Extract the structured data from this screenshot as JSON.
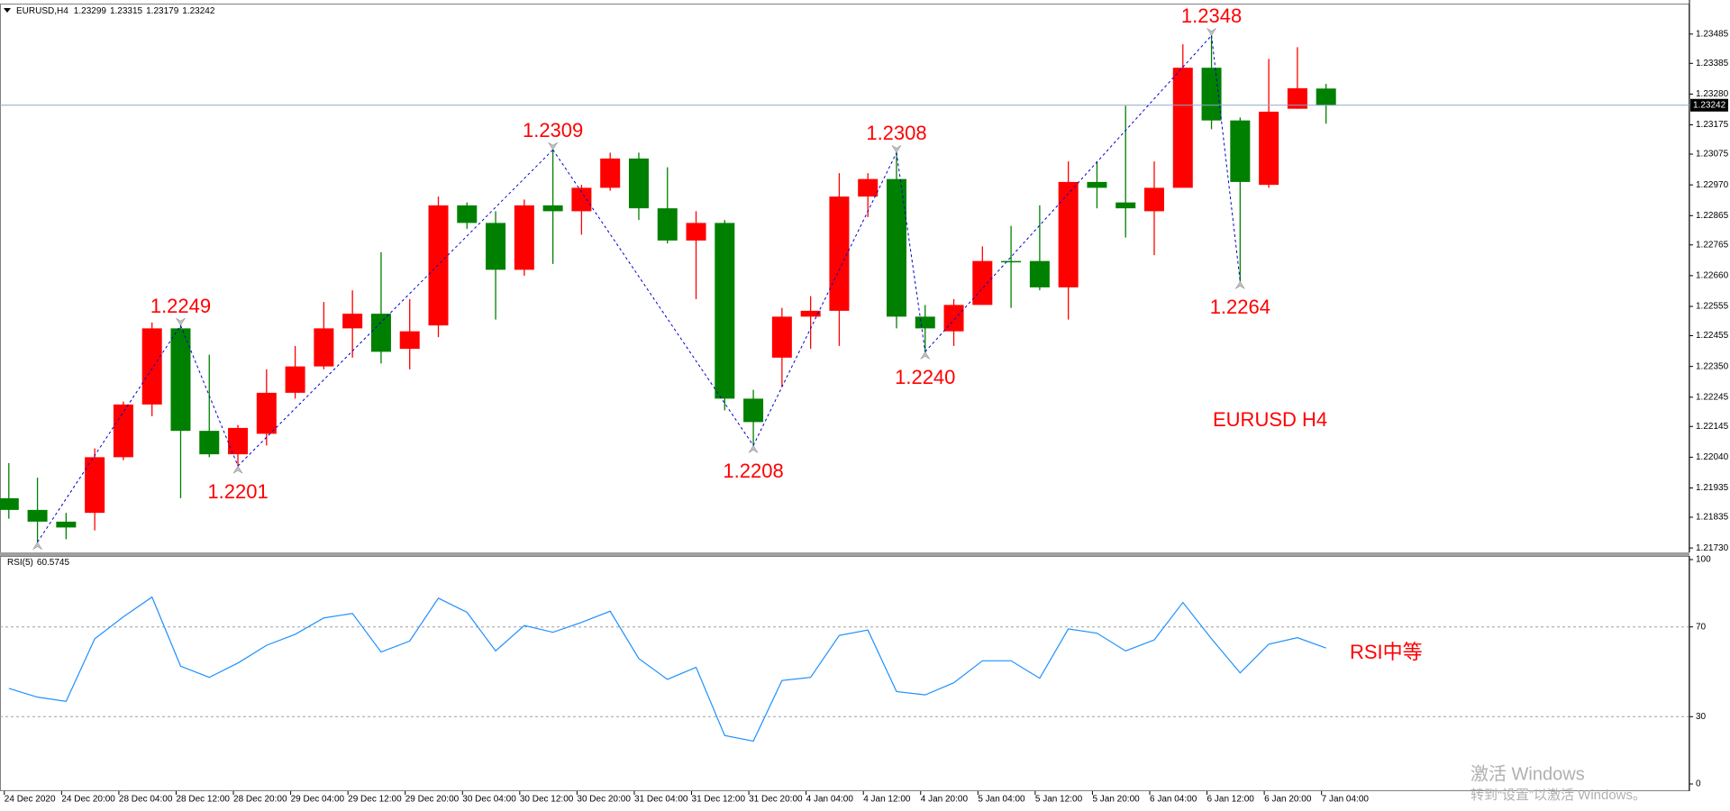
{
  "chart_data": [
    {
      "type": "candlestick",
      "title": "EURUSD,H4",
      "open": [
        1.219,
        1.2186,
        1.2182,
        1.2185,
        1.2204,
        1.2222,
        1.2248,
        1.2213,
        1.2205,
        1.2212,
        1.2226,
        1.2235,
        1.2248,
        1.2253,
        1.2241,
        1.2249,
        1.229,
        1.2284,
        1.2268,
        1.229,
        1.2288,
        1.2296,
        1.2306,
        1.2289,
        1.2278,
        1.2284,
        1.2224,
        1.2238,
        1.2252,
        1.2254,
        1.2293,
        1.2299,
        1.2252,
        1.2247,
        1.2256,
        1.2271,
        1.2271,
        1.2262,
        1.2298,
        1.2291,
        1.2288,
        1.2296,
        1.2337,
        1.2319,
        1.2297,
        1.2323,
        1.23299
      ],
      "high": [
        1.2202,
        1.2197,
        1.2185,
        1.2207,
        1.2223,
        1.225,
        1.2249,
        1.2239,
        1.2215,
        1.2234,
        1.2242,
        1.2257,
        1.2261,
        1.2274,
        1.2258,
        1.2293,
        1.2291,
        1.2288,
        1.2292,
        1.2309,
        1.2297,
        1.2308,
        1.2308,
        1.2303,
        1.2288,
        1.2285,
        1.2227,
        1.2255,
        1.2259,
        1.2301,
        1.2301,
        1.2308,
        1.2256,
        1.2258,
        1.2276,
        1.2283,
        1.229,
        1.2305,
        1.2305,
        1.2324,
        1.2305,
        1.2345,
        1.2348,
        1.232,
        1.234,
        1.2344,
        1.23315
      ],
      "low": [
        1.2183,
        1.2175,
        1.2176,
        1.2179,
        1.2203,
        1.2218,
        1.219,
        1.2204,
        1.2201,
        1.2208,
        1.2224,
        1.2234,
        1.2238,
        1.2236,
        1.2234,
        1.2245,
        1.2282,
        1.2251,
        1.2266,
        1.227,
        1.228,
        1.2295,
        1.2285,
        1.2277,
        1.2258,
        1.222,
        1.2208,
        1.2228,
        1.2241,
        1.2242,
        1.2286,
        1.2248,
        1.224,
        1.2242,
        1.2256,
        1.2255,
        1.2261,
        1.2251,
        1.2289,
        1.2279,
        1.2273,
        1.2296,
        1.2316,
        1.2264,
        1.2296,
        1.2323,
        1.23179
      ],
      "close": [
        1.2186,
        1.2182,
        1.218,
        1.2204,
        1.2222,
        1.2248,
        1.2213,
        1.2205,
        1.2214,
        1.2226,
        1.2235,
        1.2248,
        1.2253,
        1.224,
        1.2247,
        1.229,
        1.2284,
        1.2268,
        1.229,
        1.2288,
        1.2296,
        1.2306,
        1.2289,
        1.2278,
        1.2284,
        1.2224,
        1.2216,
        1.2252,
        1.2254,
        1.2293,
        1.2299,
        1.2252,
        1.2248,
        1.2256,
        1.2271,
        1.2271,
        1.2262,
        1.2298,
        1.2296,
        1.2289,
        1.2296,
        1.2337,
        1.2319,
        1.2298,
        1.2322,
        1.233,
        1.23242
      ],
      "up_color": "#ff0000",
      "down_color": "#008000",
      "ylim": [
        1.21715,
        1.23589
      ],
      "yticks": [
        {
          "value": 1.2173,
          "label": "1.21730"
        },
        1.21835,
        1.21935,
        {
          "value": 1.2204,
          "label": "1.22040"
        },
        1.22145,
        1.22245,
        {
          "value": 1.2235,
          "label": "1.22350"
        },
        1.22455,
        1.22555,
        {
          "value": 1.2266,
          "label": "1.22660"
        },
        1.22765,
        1.22865,
        {
          "value": 1.2297,
          "label": "1.22970"
        },
        1.23075,
        1.23175,
        {
          "value": 1.2328,
          "label": "1.23280"
        },
        1.23385,
        1.23485
      ],
      "current_price_line": true,
      "zigzag": {
        "color": "#0000cd",
        "points": [
          {
            "index": 1,
            "value": 1.2175
          },
          {
            "index": 6,
            "value": 1.2249,
            "label": "1.2249"
          },
          {
            "index": 8,
            "value": 1.2201,
            "label": "1.2201"
          },
          {
            "index": 19,
            "value": 1.2309,
            "label": "1.2309"
          },
          {
            "index": 26,
            "value": 1.2208,
            "label": "1.2208"
          },
          {
            "index": 31,
            "value": 1.2308,
            "label": "1.2308"
          },
          {
            "index": 32,
            "value": 1.224,
            "label": "1.2240"
          },
          {
            "index": 42,
            "value": 1.2348,
            "label": "1.2348"
          },
          {
            "index": 43,
            "value": 1.2264,
            "label": "1.2264"
          }
        ]
      },
      "annotation": "EURUSD H4"
    },
    {
      "type": "line",
      "title": "RSI(5)",
      "categories": [
        "24 Dec 2020",
        null,
        "24 Dec 20:00",
        null,
        "28 Dec 04:00",
        null,
        "28 Dec 12:00",
        null,
        "28 Dec 20:00",
        null,
        "29 Dec 04:00",
        null,
        "29 Dec 12:00",
        null,
        "29 Dec 20:00",
        null,
        "30 Dec 04:00",
        null,
        "30 Dec 12:00",
        null,
        "30 Dec 20:00",
        null,
        "31 Dec 04:00",
        null,
        "31 Dec 12:00",
        null,
        "31 Dec 20:00",
        null,
        "4 Jan 04:00",
        null,
        "4 Jan 12:00",
        null,
        "4 Jan 20:00",
        null,
        "5 Jan 04:00",
        null,
        "5 Jan 12:00",
        null,
        "5 Jan 20:00",
        null,
        "6 Jan 04:00",
        null,
        "6 Jan 12:00",
        null,
        "6 Jan 20:00",
        null,
        "7 Jan 04:00"
      ],
      "values": [
        42.6,
        38.7,
        36.8,
        64.7,
        74.5,
        83.3,
        52.5,
        47.5,
        53.9,
        61.8,
        66.7,
        74.0,
        76.0,
        58.8,
        63.7,
        82.8,
        76.5,
        59.3,
        70.6,
        67.6,
        72.0,
        77.0,
        55.9,
        46.6,
        52.0,
        21.6,
        19.1,
        46.1,
        47.5,
        66.2,
        68.6,
        41.2,
        39.7,
        45.1,
        54.9,
        54.9,
        47.1,
        69.1,
        67.2,
        59.3,
        64.2,
        80.9,
        64.7,
        49.5,
        62.3,
        65.2,
        60.5745
      ],
      "color": "#1e90ff",
      "ylim": [
        0,
        100
      ],
      "yticks": [
        0,
        30,
        70,
        100
      ],
      "annotation": "RSI中等"
    }
  ],
  "watermark": {
    "line1": "激活 Windows",
    "line2": "转到“设置”以激活 Windows。"
  }
}
